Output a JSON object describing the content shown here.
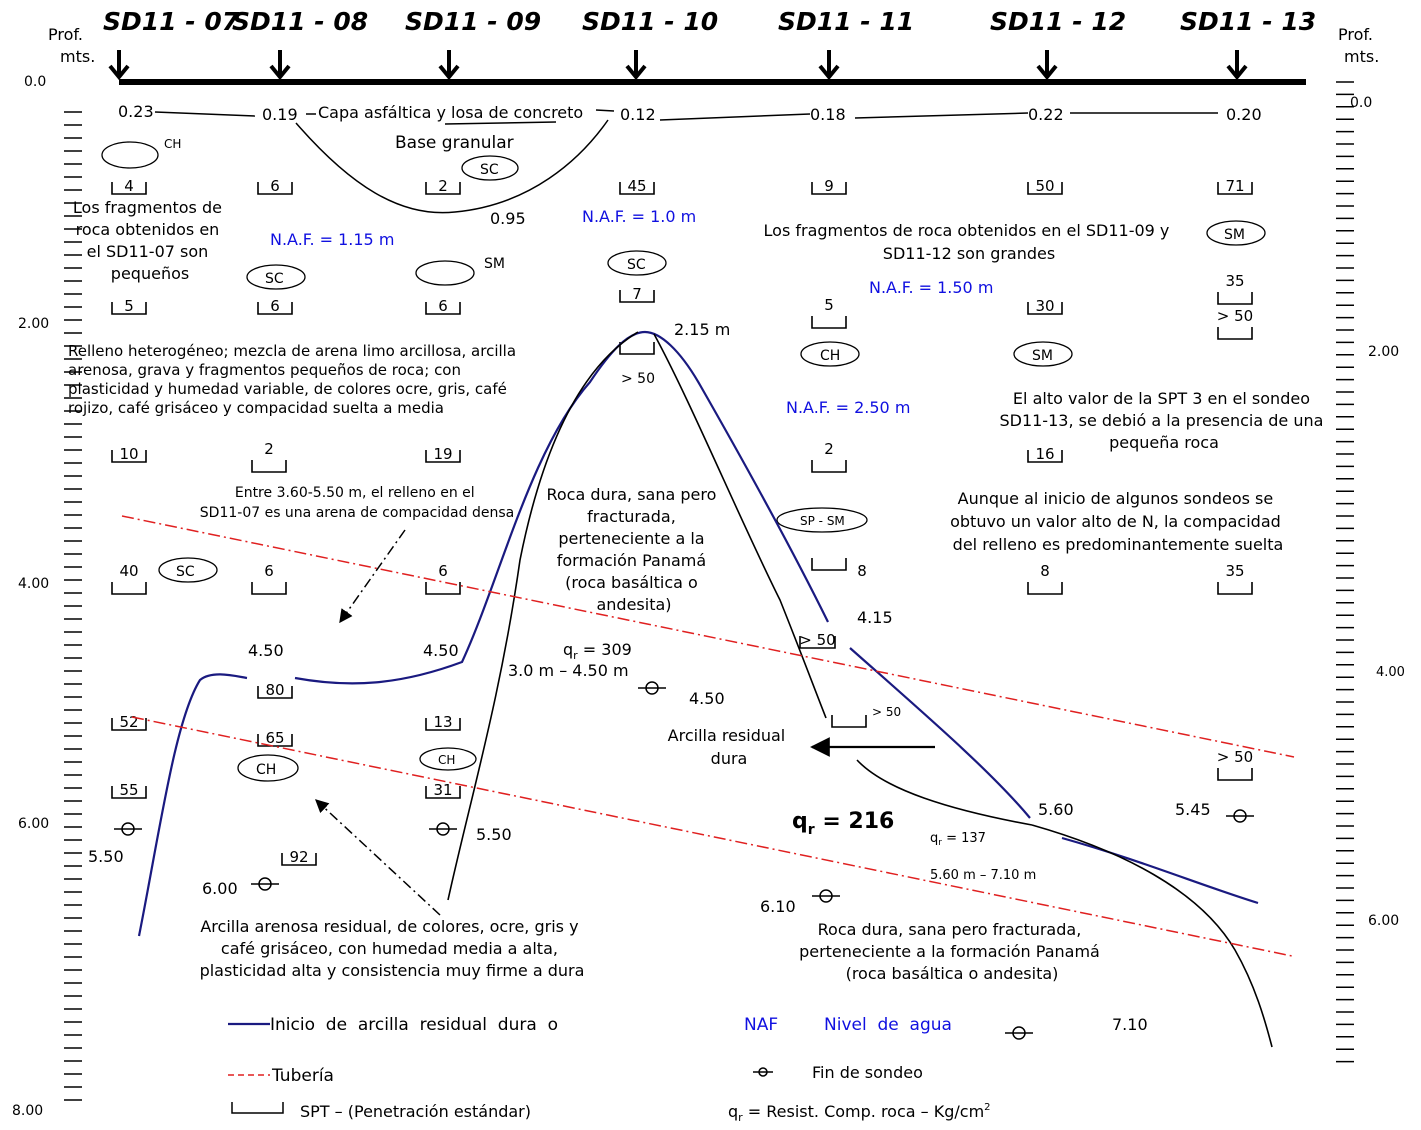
{
  "header": {
    "prof_left": [
      "Prof.",
      "mts."
    ],
    "prof_right": [
      "Prof.",
      "mts."
    ],
    "boreholes": [
      "SD11 - 07",
      "SD11 - 08",
      "SD11 - 09",
      "SD11 - 10",
      "SD11 - 11",
      "SD11 - 12",
      "SD11 - 13"
    ]
  },
  "depth_scale": {
    "left": [
      "0.0",
      "2.00",
      "4.00",
      "6.00",
      "8.00"
    ],
    "right": [
      "0.0",
      "2.00",
      "4.00",
      "6.00"
    ]
  },
  "asphalt_depths": [
    "0.23",
    "0.19",
    "0.12",
    "0.18",
    "0.22",
    "0.20"
  ],
  "asphalt_label": "Capa asfáltica y losa de concreto",
  "base_label": "Base granular",
  "base_depth": "0.95",
  "soil_symbols": [
    "CH",
    "SC",
    "SC",
    "SM",
    "SC",
    "SM",
    "CH",
    "SM",
    "SP - SM",
    "SC",
    "CH",
    "CH"
  ],
  "spt_values": [
    "4",
    "6",
    "2",
    "45",
    "9",
    "50",
    "71",
    "5",
    "6",
    "6",
    "7",
    "5",
    "30",
    "35",
    "> 50",
    "> 50",
    "10",
    "2",
    "19",
    "2",
    "16",
    "40",
    "6",
    "6",
    "8",
    "8",
    "35",
    "> 50",
    "80",
    "> 50",
    "52",
    "13",
    "65",
    "31",
    "> 50",
    "55",
    "92"
  ],
  "naf": [
    "N.A.F. = 1.15 m",
    "N.A.F. = 1.0 m",
    "N.A.F. = 1.50 m",
    "N.A.F. = 2.50 m"
  ],
  "notes": {
    "sd07_fragments": [
      "Los fragmentos de",
      "roca obtenidos en",
      "el SD11-07 son",
      "pequeños"
    ],
    "fragments_large": [
      "Los fragmentos de roca obtenidos en el SD11-09 y",
      "SD11-12 son grandes"
    ],
    "fill": [
      "Relleno heterogéneo; mezcla de arena limo arcillosa, arcilla",
      "arenosa, grava y fragmentos pequeños de roca; con",
      "plasticidad y humedad variable, de colores ocre, gris, café",
      "rojizo, café grisáceo y compacidad suelta a media"
    ],
    "spt3": [
      "El alto valor de la SPT 3 en el sondeo",
      "SD11-13, se debió a la presencia de una",
      "pequeña roca"
    ],
    "sand_dense": [
      "Entre 3.60-5.50 m, el relleno en el",
      "SD11-07 es una arena de compacidad densa"
    ],
    "compaction": [
      "Aunque al inicio de algunos sondeos se",
      "obtuvo un valor alto de N, la compacidad",
      "del relleno es predominantemente suelta"
    ],
    "rock_upper": [
      "Roca dura, sana pero",
      "fracturada,",
      "perteneciente a la",
      "formación Panamá",
      "(roca basáltica o",
      "andesita)"
    ],
    "residual_clay": [
      "Arcilla residual",
      "dura"
    ],
    "sandy_clay": [
      "Arcilla arenosa residual, de colores, ocre, gris y",
      "café grisáceo, con humedad media a alta,",
      "plasticidad alta y consistencia muy firme a dura"
    ],
    "rock_lower": [
      "Roca dura, sana pero fracturada,",
      "perteneciente a la formación Panamá",
      "(roca basáltica o andesita)"
    ]
  },
  "profile_labels": [
    "2.15 m",
    "4.50",
    "4.50",
    "4.15",
    "5.60",
    "> 50",
    "> 50"
  ],
  "qr": {
    "q309": "= 309",
    "q309_range": "3.0 m – 4.50 m",
    "q216": "= 216",
    "q137": "= 137",
    "q137_range": "5.60 m – 7.10 m",
    "symbol": "q",
    "sub": "r"
  },
  "end_depths": [
    "4.50",
    "5.50",
    "5.50",
    "6.00",
    "6.10",
    "5.45",
    "7.10"
  ],
  "legend": {
    "residual": "Inicio  de  arcilla  residual  dura  o",
    "pipe": "Tubería",
    "spt": "SPT – (Penetración estándar)",
    "naf_abbr": "NAF",
    "naf_text": "Nivel  de  agua",
    "end": "Fin de sondeo",
    "qr_text": " = Resist. Comp. roca – Kg/cm",
    "qr_sup": "2"
  },
  "colors": {
    "residual_line": "#1a1a80",
    "pipe_line": "#e02020",
    "naf_text": "#1010e0"
  }
}
